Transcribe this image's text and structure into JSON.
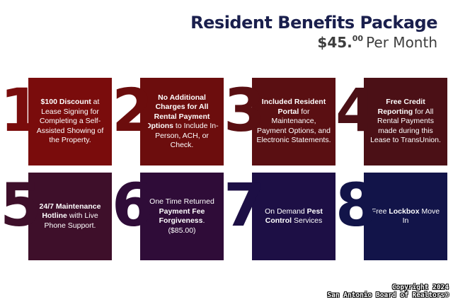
{
  "header": {
    "title": "Resident Benefits Package",
    "price_dollars": "$45.",
    "price_cents": "00",
    "price_suffix": "Per Month"
  },
  "colors": {
    "title": "#1a1f4d",
    "card1": "#7a0c0c",
    "card2": "#6c0d0d",
    "card3": "#5a0f12",
    "card4": "#4b1016",
    "card5": "#3e0f2a",
    "card6": "#2f0c38",
    "card7": "#1d0f45",
    "card8": "#121449"
  },
  "cards": [
    {
      "number": "1",
      "bold1": "$100 Discount",
      "text1": " at Lease Signing for Completing a Self-Assisted Showing of the Property.",
      "bold2": "",
      "text2": ""
    },
    {
      "number": "2",
      "bold1": "No Additional Charges for All Rental Payment Options",
      "text1": " to Include In-Person, ACH, or Check.",
      "bold2": "",
      "text2": ""
    },
    {
      "number": "3",
      "bold1": "Included Resident Portal",
      "text1": " for Maintenance, Payment Options, and Electronic Statements.",
      "bold2": "",
      "text2": ""
    },
    {
      "number": "4",
      "bold1": "Free Credit Reporting",
      "text1": " for All Rental Payments made during this Lease to TransUnion.",
      "bold2": "",
      "text2": ""
    },
    {
      "number": "5",
      "bold1": "24/7 Maintenance Hotline",
      "text1": " with Live Phone Support.",
      "bold2": "",
      "text2": ""
    },
    {
      "number": "6",
      "bold1": "",
      "text1": "One Time Returned ",
      "bold2": "Payment Fee Forgiveness",
      "text2": ". ($85.00)"
    },
    {
      "number": "7",
      "bold1": "",
      "text1": "On Demand ",
      "bold2": "Pest Control",
      "text2": " Services"
    },
    {
      "number": "8",
      "bold1": "",
      "text1": "Free ",
      "bold2": "Lockbox",
      "text2": " Move In"
    }
  ],
  "copyright": {
    "line1": "Copyright 2024",
    "line2": "San Antonio Board of Realtors®"
  }
}
